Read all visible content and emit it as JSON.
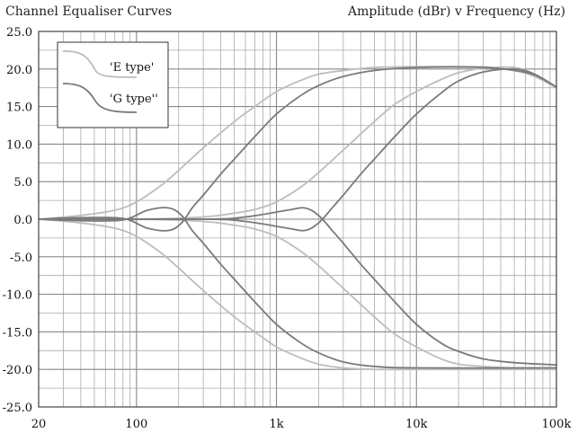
{
  "chart_data": {
    "type": "line",
    "title": "Channel Equaliser Curves",
    "subtitle": "Amplitude (dBr)  v  Frequency (Hz)",
    "xscale": "log",
    "xlim": [
      20,
      100000
    ],
    "ylim": [
      -25,
      25
    ],
    "y_ticks": [
      "25.0",
      "20.0",
      "15.0",
      "10.0",
      "5.0",
      "0.0",
      "-5.0",
      "-10.0",
      "-15.0",
      "-20.0",
      "-25.0"
    ],
    "x_ticks": [
      "20",
      "100",
      "1k",
      "10k",
      "100k"
    ],
    "grid": true,
    "legend_position": "top-left",
    "legend": [
      {
        "label": "'E type'",
        "color": "#bdbdbd"
      },
      {
        "label": "'G type''",
        "color": "#7a7a7a"
      }
    ],
    "series": [
      {
        "type": "E type",
        "color": "#bdbdbd",
        "points": [
          [
            20,
            0
          ],
          [
            40,
            0.5
          ],
          [
            70,
            1.2
          ],
          [
            100,
            2.3
          ],
          [
            150,
            4.5
          ],
          [
            200,
            6.5
          ],
          [
            300,
            9.5
          ],
          [
            500,
            13
          ],
          [
            700,
            15
          ],
          [
            1000,
            17
          ],
          [
            1500,
            18.5
          ],
          [
            2000,
            19.3
          ],
          [
            3000,
            19.8
          ],
          [
            5000,
            20.2
          ],
          [
            10000,
            20.3
          ],
          [
            30000,
            20.3
          ],
          [
            50000,
            19.8
          ],
          [
            70000,
            19
          ],
          [
            100000,
            17.5
          ]
        ]
      },
      {
        "type": "E type",
        "color": "#bdbdbd",
        "points": [
          [
            20,
            0
          ],
          [
            40,
            -0.5
          ],
          [
            70,
            -1.2
          ],
          [
            100,
            -2.3
          ],
          [
            150,
            -4.5
          ],
          [
            200,
            -6.5
          ],
          [
            300,
            -9.5
          ],
          [
            500,
            -13
          ],
          [
            700,
            -15
          ],
          [
            1000,
            -17
          ],
          [
            1500,
            -18.5
          ],
          [
            2000,
            -19.3
          ],
          [
            3000,
            -19.8
          ],
          [
            5000,
            -20
          ],
          [
            10000,
            -20
          ],
          [
            100000,
            -20
          ]
        ]
      },
      {
        "type": "E type",
        "color": "#bdbdbd",
        "points": [
          [
            20,
            0
          ],
          [
            100,
            0
          ],
          [
            300,
            0.3
          ],
          [
            500,
            0.8
          ],
          [
            700,
            1.3
          ],
          [
            1000,
            2.3
          ],
          [
            1500,
            4.3
          ],
          [
            2000,
            6.2
          ],
          [
            3000,
            9.2
          ],
          [
            5000,
            13
          ],
          [
            7000,
            15.3
          ],
          [
            10000,
            17
          ],
          [
            15000,
            18.6
          ],
          [
            20000,
            19.5
          ],
          [
            30000,
            20.1
          ],
          [
            50000,
            20.2
          ],
          [
            70000,
            19.3
          ],
          [
            100000,
            17.6
          ]
        ]
      },
      {
        "type": "E type",
        "color": "#bdbdbd",
        "points": [
          [
            20,
            0
          ],
          [
            100,
            0
          ],
          [
            300,
            -0.3
          ],
          [
            500,
            -0.8
          ],
          [
            700,
            -1.3
          ],
          [
            1000,
            -2.3
          ],
          [
            1500,
            -4.3
          ],
          [
            2000,
            -6.2
          ],
          [
            3000,
            -9.2
          ],
          [
            5000,
            -13
          ],
          [
            7000,
            -15.3
          ],
          [
            10000,
            -17
          ],
          [
            15000,
            -18.6
          ],
          [
            20000,
            -19.3
          ],
          [
            30000,
            -19.6
          ],
          [
            50000,
            -19.8
          ],
          [
            100000,
            -19.8
          ]
        ]
      },
      {
        "type": "G type",
        "color": "#7a7a7a",
        "points": [
          [
            20,
            0
          ],
          [
            40,
            0.2
          ],
          [
            80,
            0.1
          ],
          [
            120,
            -1.2
          ],
          [
            170,
            -1.5
          ],
          [
            210,
            -0.5
          ],
          [
            250,
            1.5
          ],
          [
            300,
            3.2
          ],
          [
            400,
            6
          ],
          [
            500,
            8
          ],
          [
            700,
            11
          ],
          [
            1000,
            14
          ],
          [
            1500,
            16.5
          ],
          [
            2000,
            17.8
          ],
          [
            3000,
            19
          ],
          [
            5000,
            19.8
          ],
          [
            10000,
            20.2
          ],
          [
            30000,
            20.2
          ],
          [
            50000,
            19.8
          ],
          [
            70000,
            19.2
          ],
          [
            100000,
            17.6
          ]
        ]
      },
      {
        "type": "G type",
        "color": "#7a7a7a",
        "points": [
          [
            20,
            0
          ],
          [
            40,
            -0.2
          ],
          [
            80,
            -0.1
          ],
          [
            120,
            1.2
          ],
          [
            170,
            1.5
          ],
          [
            210,
            0.5
          ],
          [
            250,
            -1.5
          ],
          [
            300,
            -3.2
          ],
          [
            400,
            -6
          ],
          [
            500,
            -8
          ],
          [
            700,
            -11
          ],
          [
            1000,
            -14
          ],
          [
            1500,
            -16.5
          ],
          [
            2000,
            -17.8
          ],
          [
            3000,
            -19
          ],
          [
            5000,
            -19.6
          ],
          [
            10000,
            -19.8
          ],
          [
            100000,
            -19.8
          ]
        ]
      },
      {
        "type": "G type",
        "color": "#7a7a7a",
        "points": [
          [
            20,
            0
          ],
          [
            300,
            0
          ],
          [
            600,
            -0.3
          ],
          [
            1200,
            -1.2
          ],
          [
            1600,
            -1.5
          ],
          [
            2000,
            -0.5
          ],
          [
            2500,
            1.5
          ],
          [
            3000,
            3.2
          ],
          [
            4000,
            6
          ],
          [
            5000,
            8
          ],
          [
            7000,
            11
          ],
          [
            10000,
            14
          ],
          [
            15000,
            16.8
          ],
          [
            20000,
            18.4
          ],
          [
            30000,
            19.6
          ],
          [
            50000,
            20
          ],
          [
            70000,
            19.3
          ],
          [
            100000,
            17.6
          ]
        ]
      },
      {
        "type": "G type",
        "color": "#7a7a7a",
        "points": [
          [
            20,
            0
          ],
          [
            300,
            0
          ],
          [
            600,
            0.3
          ],
          [
            1200,
            1.2
          ],
          [
            1600,
            1.5
          ],
          [
            2000,
            0.5
          ],
          [
            2500,
            -1.5
          ],
          [
            3000,
            -3.2
          ],
          [
            4000,
            -6
          ],
          [
            5000,
            -8
          ],
          [
            7000,
            -11
          ],
          [
            10000,
            -14
          ],
          [
            15000,
            -16.5
          ],
          [
            20000,
            -17.6
          ],
          [
            30000,
            -18.6
          ],
          [
            50000,
            -19.1
          ],
          [
            100000,
            -19.4
          ]
        ]
      }
    ]
  }
}
